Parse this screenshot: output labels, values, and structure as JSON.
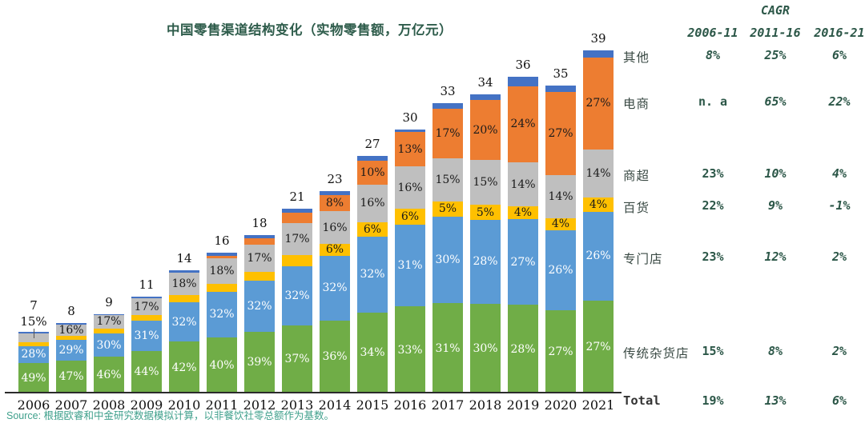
{
  "chart_data": {
    "type": "stacked-bar",
    "title": "中国零售渠道结构变化（实物零售额，万亿元）",
    "categories": [
      "2006",
      "2007",
      "2008",
      "2009",
      "2010",
      "2011",
      "2012",
      "2013",
      "2014",
      "2015",
      "2016",
      "2017",
      "2018",
      "2019",
      "2020",
      "2021"
    ],
    "totals": [
      7,
      8,
      9,
      11,
      14,
      16,
      18,
      21,
      23,
      27,
      30,
      33,
      34,
      36,
      35,
      39
    ],
    "ylabel": "万亿元",
    "grid": false,
    "legend_position": "right-of-last-bar",
    "series": [
      {
        "key": "grocery",
        "name": "传统杂货店",
        "color": "#70AD47",
        "label_color": "#FFFFFF",
        "values": [
          49,
          47,
          46,
          44,
          42,
          40,
          39,
          37,
          36,
          34,
          33,
          31,
          30,
          28,
          27,
          27
        ],
        "labels": [
          "49%",
          "47%",
          "46%",
          "44%",
          "42%",
          "40%",
          "39%",
          "37%",
          "36%",
          "34%",
          "33%",
          "31%",
          "30%",
          "28%",
          "27%",
          "27%"
        ]
      },
      {
        "key": "specialty",
        "name": "专门店",
        "color": "#5B9BD5",
        "label_color": "#FFFFFF",
        "values": [
          28,
          29,
          30,
          31,
          32,
          32,
          32,
          32,
          32,
          32,
          31,
          30,
          28,
          27,
          26,
          26
        ],
        "labels": [
          "28%",
          "29%",
          "30%",
          "31%",
          "32%",
          "32%",
          "32%",
          "32%",
          "32%",
          "32%",
          "31%",
          "30%",
          "28%",
          "27%",
          "26%",
          "26%"
        ]
      },
      {
        "key": "department",
        "name": "百货",
        "color": "#FFC000",
        "label_color": "#1A1A1A",
        "values": [
          6,
          6,
          6,
          6,
          6,
          6,
          6,
          6,
          6,
          6,
          6,
          5,
          5,
          4,
          4,
          4
        ],
        "labels": [
          "",
          "",
          "",
          "",
          "",
          "",
          "",
          "",
          "6%",
          "6%",
          "6%",
          "5%",
          "5%",
          "4%",
          "4%",
          "4%"
        ]
      },
      {
        "key": "supermarket",
        "name": "商超",
        "color": "#BFBFBF",
        "label_color": "#1A1A1A",
        "values": [
          15,
          16,
          17,
          17,
          18,
          18,
          17,
          17,
          16,
          16,
          16,
          15,
          15,
          14,
          14,
          14
        ],
        "labels": [
          "15%",
          "16%",
          "17%",
          "17%",
          "18%",
          "18%",
          "17%",
          "17%",
          "16%",
          "16%",
          "16%",
          "15%",
          "15%",
          "14%",
          "14%",
          "14%"
        ]
      },
      {
        "key": "ecommerce",
        "name": "电商",
        "color": "#ED7D31",
        "label_color": "#1A1A1A",
        "values": [
          0,
          0,
          0,
          0,
          0,
          2,
          4,
          6,
          8,
          10,
          13,
          17,
          20,
          24,
          27,
          27
        ],
        "labels": [
          "",
          "",
          "",
          "",
          "",
          "",
          "",
          "",
          "8%",
          "10%",
          "13%",
          "17%",
          "20%",
          "24%",
          "27%",
          "27%"
        ]
      },
      {
        "key": "other",
        "name": "其他",
        "color": "#4472C4",
        "label_color": "#FFFFFF",
        "values": [
          2,
          2,
          1,
          2,
          2,
          2,
          2,
          2,
          2,
          2,
          1,
          2,
          2,
          3,
          2,
          2
        ],
        "labels": [
          "",
          "",
          "",
          "",
          "",
          "",
          "",
          "",
          "",
          "",
          "",
          "",
          "",
          "",
          "",
          ""
        ]
      }
    ],
    "outside_labels": [
      {
        "series": 3,
        "year": 0
      }
    ]
  },
  "cagr": {
    "header": "CAGR",
    "columns": [
      "2006-11",
      "2011-16",
      "2016-21"
    ],
    "rows": [
      {
        "key": "other",
        "label": "其他",
        "values": [
          "8%",
          "25%",
          "6%"
        ]
      },
      {
        "key": "ecommerce",
        "label": "电商",
        "values": [
          "n. a",
          "65%",
          "22%"
        ]
      },
      {
        "key": "supermarket",
        "label": "商超",
        "values": [
          "23%",
          "10%",
          "4%"
        ]
      },
      {
        "key": "department",
        "label": "百货",
        "values": [
          "22%",
          "9%",
          "-1%"
        ]
      },
      {
        "key": "specialty",
        "label": "专门店",
        "values": [
          "23%",
          "12%",
          "2%"
        ]
      },
      {
        "key": "grocery",
        "label": "传统杂货店",
        "values": [
          "15%",
          "8%",
          "2%"
        ]
      },
      {
        "key": "total",
        "label": "Total",
        "values": [
          "19%",
          "13%",
          "6%"
        ]
      }
    ]
  },
  "source": {
    "text": "Source: 根据欧睿和中金研究数据模拟计算，以非餐饮社零总额作为基数。"
  }
}
